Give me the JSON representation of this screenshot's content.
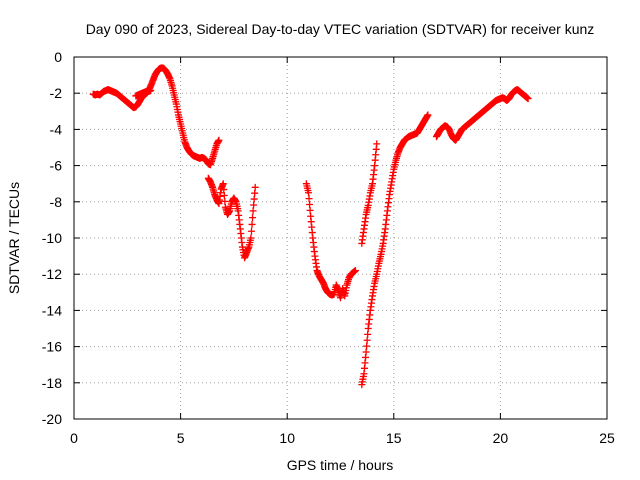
{
  "chart_data": {
    "type": "scatter",
    "title": "Day 090 of 2023, Sidereal Day-to-day VTEC variation (SDTVAR) for receiver kunz",
    "xlabel": "GPS time / hours",
    "ylabel": "SDTVAR / TECUs",
    "xlim": [
      0,
      25
    ],
    "ylim": [
      -20,
      0
    ],
    "x_ticks": [
      "0",
      "5",
      "10",
      "15",
      "20",
      "25"
    ],
    "y_ticks": [
      "0",
      "-2",
      "-4",
      "-6",
      "-8",
      "-10",
      "-12",
      "-14",
      "-16",
      "-18",
      "-20"
    ],
    "grid": true,
    "marker": "plus",
    "color": "#ff0000",
    "series": [
      {
        "points": [
          [
            0.9,
            -2.05
          ],
          [
            1.0,
            -2.1
          ],
          [
            1.1,
            -2.05
          ],
          [
            1.2,
            -2.1
          ],
          [
            1.3,
            -2.0
          ],
          [
            1.4,
            -1.9
          ],
          [
            1.5,
            -1.85
          ],
          [
            1.6,
            -1.8
          ],
          [
            1.7,
            -1.85
          ],
          [
            1.8,
            -1.9
          ],
          [
            1.9,
            -1.95
          ],
          [
            2.0,
            -2.0
          ],
          [
            2.1,
            -2.1
          ],
          [
            2.2,
            -2.2
          ],
          [
            2.3,
            -2.3
          ],
          [
            2.4,
            -2.4
          ],
          [
            2.5,
            -2.5
          ],
          [
            2.6,
            -2.6
          ],
          [
            2.7,
            -2.7
          ],
          [
            2.8,
            -2.8
          ],
          [
            2.9,
            -2.75
          ],
          [
            3.0,
            -2.6
          ],
          [
            3.1,
            -2.4
          ],
          [
            3.2,
            -2.2
          ],
          [
            3.3,
            -2.1
          ],
          [
            3.4,
            -2.0
          ],
          [
            3.5,
            -1.85
          ],
          [
            3.6,
            -1.6
          ],
          [
            3.7,
            -1.3
          ],
          [
            3.8,
            -1.0
          ],
          [
            3.9,
            -0.8
          ],
          [
            4.0,
            -0.65
          ],
          [
            4.1,
            -0.6
          ],
          [
            4.2,
            -0.62
          ],
          [
            4.3,
            -0.75
          ],
          [
            4.4,
            -0.95
          ],
          [
            4.5,
            -1.2
          ],
          [
            4.6,
            -1.6
          ],
          [
            4.7,
            -2.1
          ],
          [
            4.8,
            -2.6
          ],
          [
            4.9,
            -3.2
          ],
          [
            5.0,
            -3.7
          ],
          [
            5.1,
            -4.2
          ],
          [
            5.2,
            -4.7
          ],
          [
            5.3,
            -5.0
          ],
          [
            5.4,
            -5.2
          ],
          [
            5.5,
            -5.35
          ],
          [
            5.6,
            -5.45
          ],
          [
            5.7,
            -5.5
          ],
          [
            5.8,
            -5.55
          ],
          [
            5.9,
            -5.6
          ],
          [
            6.0,
            -5.55
          ],
          [
            6.1,
            -5.6
          ],
          [
            6.2,
            -5.7
          ],
          [
            6.3,
            -5.9
          ],
          [
            6.4,
            -5.95
          ],
          [
            6.5,
            -5.6
          ],
          [
            6.6,
            -5.2
          ],
          [
            6.7,
            -4.8
          ],
          [
            6.8,
            -4.6
          ]
        ]
      },
      {
        "points": [
          [
            2.9,
            -2.15
          ],
          [
            3.0,
            -2.1
          ],
          [
            3.1,
            -2.05
          ],
          [
            3.2,
            -2.0
          ],
          [
            3.3,
            -1.95
          ],
          [
            3.4,
            -1.9
          ],
          [
            3.5,
            -1.9
          ],
          [
            3.6,
            -1.85
          ]
        ]
      },
      {
        "points": [
          [
            6.3,
            -6.7
          ],
          [
            6.4,
            -6.9
          ],
          [
            6.5,
            -7.2
          ],
          [
            6.6,
            -7.6
          ],
          [
            6.7,
            -7.9
          ],
          [
            6.8,
            -8.1
          ],
          [
            6.9,
            -7.3
          ],
          [
            7.0,
            -7.0
          ],
          [
            7.1,
            -8.3
          ],
          [
            7.2,
            -8.7
          ],
          [
            7.3,
            -8.5
          ],
          [
            7.4,
            -8.0
          ],
          [
            7.5,
            -7.8
          ],
          [
            7.6,
            -8.0
          ],
          [
            7.7,
            -8.5
          ],
          [
            7.8,
            -9.5
          ],
          [
            7.9,
            -10.5
          ],
          [
            8.0,
            -11.1
          ],
          [
            8.1,
            -10.8
          ],
          [
            8.2,
            -10.5
          ],
          [
            8.3,
            -10.0
          ],
          [
            8.4,
            -8.5
          ],
          [
            8.5,
            -7.2
          ]
        ]
      },
      {
        "points": [
          [
            10.9,
            -7.0
          ],
          [
            11.0,
            -7.5
          ],
          [
            11.1,
            -8.8
          ],
          [
            11.2,
            -10.0
          ],
          [
            11.3,
            -11.0
          ],
          [
            11.4,
            -11.8
          ],
          [
            11.5,
            -12.1
          ],
          [
            11.6,
            -12.3
          ],
          [
            11.7,
            -12.5
          ],
          [
            11.8,
            -12.8
          ],
          [
            11.9,
            -13.0
          ],
          [
            12.0,
            -13.1
          ],
          [
            12.1,
            -13.15
          ],
          [
            12.2,
            -13.1
          ],
          [
            12.3,
            -12.6
          ],
          [
            12.4,
            -12.9
          ],
          [
            12.5,
            -13.3
          ],
          [
            12.6,
            -12.8
          ],
          [
            12.7,
            -13.2
          ],
          [
            12.8,
            -12.6
          ],
          [
            12.9,
            -12.2
          ],
          [
            13.0,
            -12.0
          ],
          [
            13.1,
            -11.9
          ],
          [
            13.2,
            -11.8
          ]
        ]
      },
      {
        "points": [
          [
            13.5,
            -10.3
          ],
          [
            13.6,
            -9.5
          ],
          [
            13.7,
            -8.7
          ],
          [
            13.8,
            -8.2
          ],
          [
            13.9,
            -7.5
          ],
          [
            14.0,
            -7.0
          ],
          [
            14.1,
            -6.0
          ],
          [
            14.2,
            -4.8
          ]
        ]
      },
      {
        "points": [
          [
            13.5,
            -18.1
          ],
          [
            13.6,
            -17.5
          ],
          [
            13.7,
            -16.3
          ],
          [
            13.8,
            -15.0
          ],
          [
            13.9,
            -14.0
          ],
          [
            14.0,
            -13.2
          ],
          [
            14.1,
            -12.5
          ],
          [
            14.2,
            -12.0
          ],
          [
            14.3,
            -11.4
          ],
          [
            14.4,
            -10.9
          ],
          [
            14.5,
            -10.3
          ],
          [
            14.6,
            -9.5
          ],
          [
            14.7,
            -8.5
          ],
          [
            14.8,
            -7.6
          ],
          [
            14.9,
            -6.9
          ],
          [
            15.0,
            -6.2
          ],
          [
            15.1,
            -5.7
          ],
          [
            15.2,
            -5.3
          ],
          [
            15.3,
            -5.0
          ],
          [
            15.4,
            -4.8
          ],
          [
            15.5,
            -4.6
          ],
          [
            15.6,
            -4.5
          ],
          [
            15.7,
            -4.4
          ],
          [
            15.8,
            -4.35
          ],
          [
            15.9,
            -4.3
          ],
          [
            16.0,
            -4.25
          ],
          [
            16.1,
            -4.2
          ],
          [
            16.2,
            -4.0
          ],
          [
            16.3,
            -3.8
          ],
          [
            16.4,
            -3.6
          ],
          [
            16.5,
            -3.4
          ],
          [
            16.6,
            -3.2
          ]
        ]
      },
      {
        "points": [
          [
            17.0,
            -4.4
          ],
          [
            17.1,
            -4.2
          ],
          [
            17.2,
            -4.0
          ],
          [
            17.3,
            -3.9
          ],
          [
            17.4,
            -3.8
          ],
          [
            17.5,
            -3.85
          ],
          [
            17.6,
            -4.0
          ],
          [
            17.7,
            -4.3
          ],
          [
            17.8,
            -4.5
          ],
          [
            17.9,
            -4.6
          ],
          [
            18.0,
            -4.4
          ],
          [
            18.1,
            -4.2
          ],
          [
            18.2,
            -4.0
          ],
          [
            18.3,
            -3.9
          ],
          [
            18.4,
            -3.8
          ],
          [
            18.5,
            -3.7
          ],
          [
            18.6,
            -3.6
          ],
          [
            18.7,
            -3.5
          ],
          [
            18.8,
            -3.4
          ],
          [
            18.9,
            -3.3
          ],
          [
            19.0,
            -3.2
          ],
          [
            19.1,
            -3.1
          ],
          [
            19.2,
            -3.0
          ],
          [
            19.3,
            -2.9
          ],
          [
            19.4,
            -2.8
          ],
          [
            19.5,
            -2.7
          ],
          [
            19.6,
            -2.6
          ],
          [
            19.7,
            -2.5
          ],
          [
            19.8,
            -2.4
          ],
          [
            19.9,
            -2.35
          ],
          [
            20.0,
            -2.3
          ],
          [
            20.1,
            -2.25
          ],
          [
            20.2,
            -2.3
          ],
          [
            20.3,
            -2.4
          ],
          [
            20.4,
            -2.3
          ],
          [
            20.5,
            -2.1
          ],
          [
            20.6,
            -1.95
          ],
          [
            20.7,
            -1.85
          ],
          [
            20.8,
            -1.8
          ],
          [
            20.9,
            -1.9
          ],
          [
            21.0,
            -2.0
          ],
          [
            21.1,
            -2.1
          ],
          [
            21.2,
            -2.2
          ],
          [
            21.3,
            -2.3
          ]
        ]
      }
    ]
  }
}
